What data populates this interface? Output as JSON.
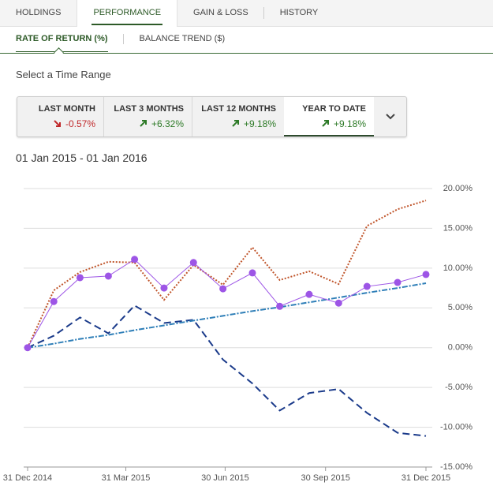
{
  "tabs": [
    "HOLDINGS",
    "PERFORMANCE",
    "GAIN & LOSS",
    "HISTORY"
  ],
  "active_tab": 1,
  "sub_tabs": [
    "RATE OF RETURN (%)",
    "BALANCE TREND ($)"
  ],
  "active_sub_tab": 0,
  "time_range_label": "Select a Time Range",
  "ranges": [
    {
      "label": "LAST MONTH",
      "change": "-0.57%",
      "direction": "down"
    },
    {
      "label": "LAST 3 MONTHS",
      "change": "+6.32%",
      "direction": "up"
    },
    {
      "label": "LAST 12 MONTHS",
      "change": "+9.18%",
      "direction": "up"
    },
    {
      "label": "YEAR TO DATE",
      "change": "+9.18%",
      "direction": "up"
    }
  ],
  "active_range": 3,
  "date_range": "01 Jan 2015 - 01 Jan 2016",
  "chart_data": {
    "type": "line",
    "x": [
      "2014-12-31",
      "2015-01-24",
      "2015-02-17",
      "2015-03-15",
      "2015-04-08",
      "2015-05-05",
      "2015-06-01",
      "2015-06-28",
      "2015-07-25",
      "2015-08-19",
      "2015-09-15",
      "2015-10-12",
      "2015-11-07",
      "2015-12-05",
      "2015-12-31"
    ],
    "xlim": [
      "2014-12-31",
      "2015-12-31"
    ],
    "xticks": [
      {
        "value": "2014-12-31",
        "label": "31 Dec 2014"
      },
      {
        "value": "2015-03-31",
        "label": "31 Mar 2015"
      },
      {
        "value": "2015-06-30",
        "label": "30 Jun 2015"
      },
      {
        "value": "2015-09-30",
        "label": "30 Sep 2015"
      },
      {
        "value": "2015-12-31",
        "label": "31 Dec 2015"
      }
    ],
    "ylim": [
      -15,
      20
    ],
    "yticks": [
      {
        "value": 20,
        "label": "20.00%"
      },
      {
        "value": 15,
        "label": "15.00%"
      },
      {
        "value": 10,
        "label": "10.00%"
      },
      {
        "value": 5,
        "label": "5.00%"
      },
      {
        "value": 0,
        "label": "0.00%"
      },
      {
        "value": -5,
        "label": "-5.00%"
      },
      {
        "value": -10,
        "label": "-10.00%"
      },
      {
        "value": -15,
        "label": "-15.00%"
      }
    ],
    "grid": true,
    "series": [
      {
        "color": "#c0552b",
        "style": "dotted",
        "values": [
          0,
          7.2,
          9.5,
          10.8,
          10.7,
          6.0,
          10.4,
          7.9,
          12.6,
          8.5,
          9.6,
          8.0,
          15.3,
          17.4,
          18.5
        ]
      },
      {
        "color": "#1a3a8a",
        "style": "dashed",
        "values": [
          0,
          1.5,
          3.8,
          1.8,
          5.3,
          3.1,
          3.5,
          -1.5,
          -4.5,
          -7.9,
          -5.7,
          -5.2,
          -8.2,
          -10.7,
          -11.1
        ]
      },
      {
        "color": "#2f7fb8",
        "style": "dashdot",
        "values": [
          0,
          0.5,
          1.1,
          1.6,
          2.2,
          2.8,
          3.4,
          4.0,
          4.6,
          5.1,
          5.7,
          6.3,
          6.9,
          7.5,
          8.1
        ]
      },
      {
        "color": "#9d55e6",
        "style": "solid",
        "markers": true,
        "values": [
          0,
          5.8,
          8.8,
          9.0,
          11.1,
          7.5,
          10.7,
          7.4,
          9.4,
          5.2,
          6.7,
          5.6,
          7.7,
          8.2,
          9.2
        ]
      }
    ]
  }
}
